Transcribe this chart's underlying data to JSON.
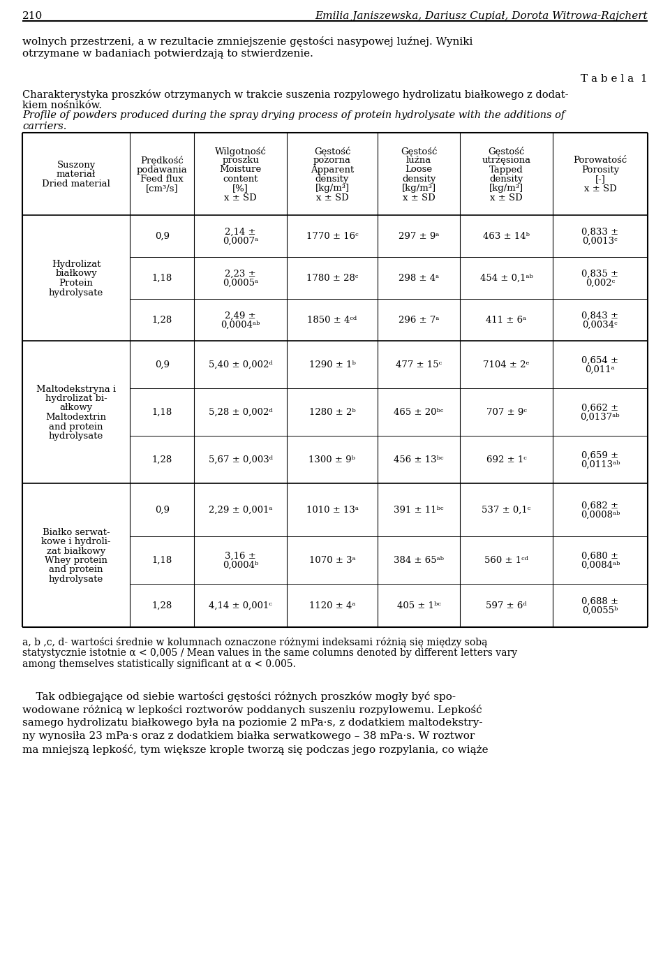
{
  "page_num": "210",
  "authors": "Emilia Janiszewska, Dariusz Cupiał, Dorota Witrowa-Rajchert",
  "col_headers": [
    [
      "Suszony",
      "materiał",
      "Dried material"
    ],
    [
      "Prędkość",
      "podawania",
      "Feed flux",
      "[cm³/s]"
    ],
    [
      "Wilgotność",
      "proszku",
      "Moisture",
      "content",
      "[%]",
      "x ± SD"
    ],
    [
      "Gęstość",
      "pozorna",
      "Apparent",
      "density",
      "[kg/m³]",
      "x ± SD"
    ],
    [
      "Gęstość",
      "luźna",
      "Loose",
      "density",
      "[kg/m³]",
      "x ± SD"
    ],
    [
      "Gęstość",
      "utrzęsiona",
      "Tapped",
      "density",
      "[kg/m³]",
      "x ± SD"
    ],
    [
      "Porowatość",
      "Porosity",
      "[-]",
      "x ± SD"
    ]
  ],
  "groups": [
    {
      "label": [
        "Hydrolizat",
        "białkowy",
        "Protein",
        "hydrolysate"
      ],
      "rows": [
        [
          "0,9",
          "2,14 ±\n0,0007ᵃ",
          "1770 ± 16ᶜ",
          "297 ± 9ᵃ",
          "463 ± 14ᵇ",
          "0,833 ±\n0,0013ᶜ"
        ],
        [
          "1,18",
          "2,23 ±\n0,0005ᵃ",
          "1780 ± 28ᶜ",
          "298 ± 4ᵃ",
          "454 ± 0,1ᵃᵇ",
          "0,835 ±\n0,002ᶜ"
        ],
        [
          "1,28",
          "2,49 ±\n0,0004ᵃᵇ",
          "1850 ± 4ᶜᵈ",
          "296 ± 7ᵃ",
          "411 ± 6ᵃ",
          "0,843 ±\n0,0034ᶜ"
        ]
      ]
    },
    {
      "label": [
        "Maltodekstryna i",
        "hydrolizat bi-",
        "ałkowy",
        "Maltodextrin",
        "and protein",
        "hydrolysate"
      ],
      "rows": [
        [
          "0,9",
          "5,40 ± 0,002ᵈ",
          "1290 ± 1ᵇ",
          "477 ± 15ᶜ",
          "7104 ± 2ᵉ",
          "0,654 ±\n0,011ᵃ"
        ],
        [
          "1,18",
          "5,28 ± 0,002ᵈ",
          "1280 ± 2ᵇ",
          "465 ± 20ᵇᶜ",
          "707 ± 9ᶜ",
          "0,662 ±\n0,0137ᵃᵇ"
        ],
        [
          "1,28",
          "5,67 ± 0,003ᵈ",
          "1300 ± 9ᵇ",
          "456 ± 13ᵇᶜ",
          "692 ± 1ᶜ",
          "0,659 ±\n0,0113ᵃᵇ"
        ]
      ]
    },
    {
      "label": [
        "Białko serwat-",
        "kowe i hydroli-",
        "zat białkowy",
        "Whey protein",
        "and protein",
        "hydrolysate"
      ],
      "rows": [
        [
          "0,9",
          "2,29 ± 0,001ᵃ",
          "1010 ± 13ᵃ",
          "391 ± 11ᵇᶜ",
          "537 ± 0,1ᶜ",
          "0,682 ±\n0,0008ᵃᵇ"
        ],
        [
          "1,18",
          "3,16 ±\n0,0004ᵇ",
          "1070 ± 3ᵃ",
          "384 ± 65ᵃᵇ",
          "560 ± 1ᶜᵈ",
          "0,680 ±\n0,0084ᵃᵇ"
        ],
        [
          "1,28",
          "4,14 ± 0,001ᶜ",
          "1120 ± 4ᵃ",
          "405 ± 1ᵇᶜ",
          "597 ± 6ᵈ",
          "0,688 ±\n0,0055ᵇ"
        ]
      ]
    }
  ],
  "footnote_lines": [
    "a, b ,c, d- wartości średnie w kolumnach oznaczone różnymi indeksami różnią się między sobą",
    "statystycznie istotnie α < 0,005 / Mean values in the same columns denoted by different letters vary",
    "among themselves statistically significant at α < 0.005."
  ],
  "bottom_para": [
    "    Tak odbiegające od siebie wartości gęstości różnych proszków mogły być spo-",
    "wodowane różnicą w lepkości roztworów poddanych suszeniu rozpylowemu. Lepkość",
    "samego hydrolizatu białkowego była na poziomie 2 mPa·s, z dodatkiem maltodekstry-",
    "ny wynosiła 23 mPa·s oraz z dodatkiem białka serwatkowego – 38 mPa·s. W roztwor",
    "ma mniejszą lepkość, tym większe krople tworzą się podczas jego rozpylania, co wiąże"
  ]
}
